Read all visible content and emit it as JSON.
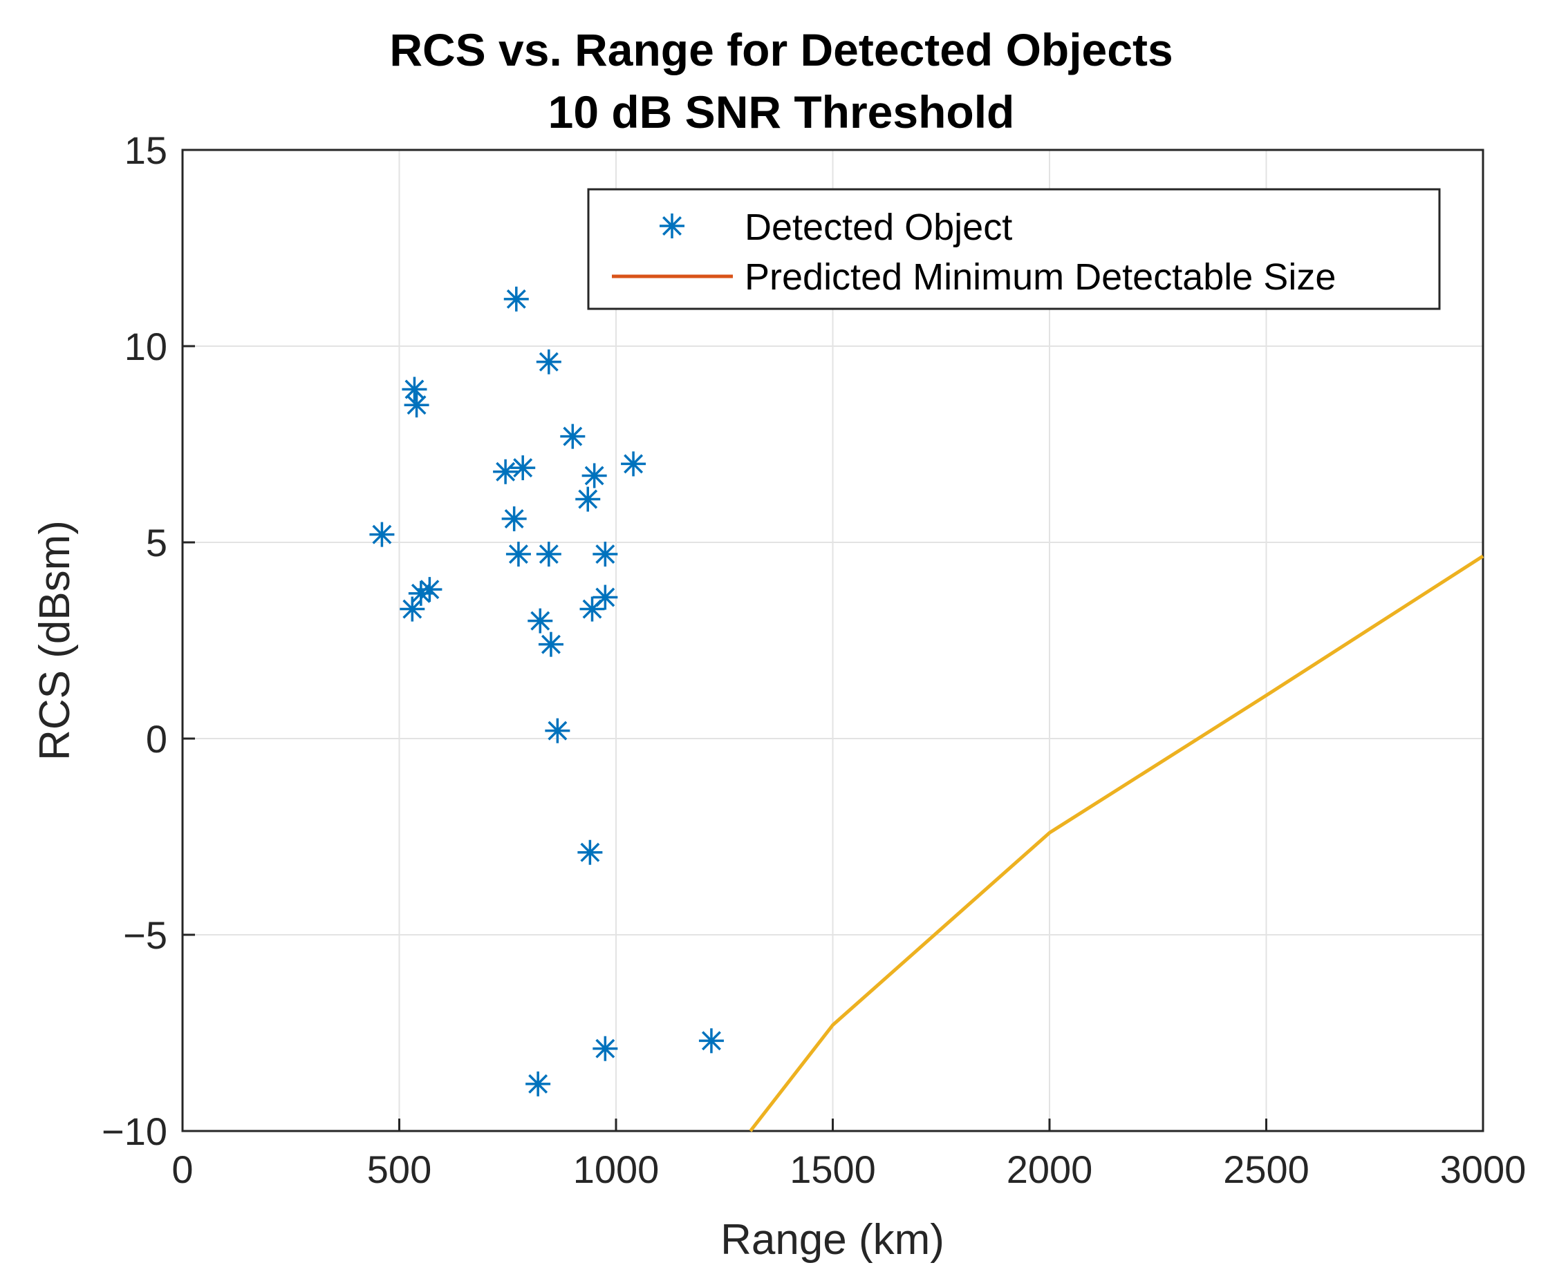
{
  "chart_data": {
    "type": "scatter",
    "title": "RCS vs. Range for Detected Objects",
    "subtitle": "10 dB SNR Threshold",
    "xlabel": "Range (km)",
    "ylabel": "RCS (dBsm)",
    "xlim": [
      0,
      3000
    ],
    "ylim": [
      -10,
      15
    ],
    "xticks": [
      0,
      500,
      1000,
      1500,
      2000,
      2500,
      3000
    ],
    "xtick_labels": [
      "0",
      "500",
      "1000",
      "1500",
      "2000",
      "2500",
      "3000"
    ],
    "yticks": [
      -10,
      -5,
      0,
      5,
      10,
      15
    ],
    "ytick_labels": [
      "−10",
      "−5",
      "0",
      "5",
      "10",
      "15"
    ],
    "grid": true,
    "legend_position": "top-right",
    "series": [
      {
        "name": "Detected Object",
        "kind": "scatter",
        "marker": "asterisk",
        "color": "#0072BD",
        "x": [
          770,
          845,
          535,
          540,
          900,
          745,
          785,
          950,
          1040,
          935,
          765,
          460,
          775,
          845,
          975,
          530,
          550,
          570,
          975,
          945,
          825,
          850,
          865,
          940,
          1220,
          975,
          820
        ],
        "y": [
          11.2,
          9.6,
          8.9,
          8.5,
          7.7,
          6.8,
          6.9,
          6.7,
          7.0,
          6.1,
          5.6,
          5.2,
          4.7,
          4.7,
          4.7,
          3.3,
          3.7,
          3.8,
          3.6,
          3.3,
          3.0,
          2.4,
          0.2,
          -2.9,
          -7.7,
          -7.9,
          -8.8
        ]
      },
      {
        "name": "Predicted Minimum Detectable Size",
        "kind": "line",
        "legend_color": "#D95319",
        "color": "#EDB120",
        "x": [
          1310,
          1500,
          2000,
          2500,
          3000
        ],
        "y": [
          -10,
          -7.3,
          -2.4,
          1.1,
          4.65
        ]
      }
    ]
  }
}
